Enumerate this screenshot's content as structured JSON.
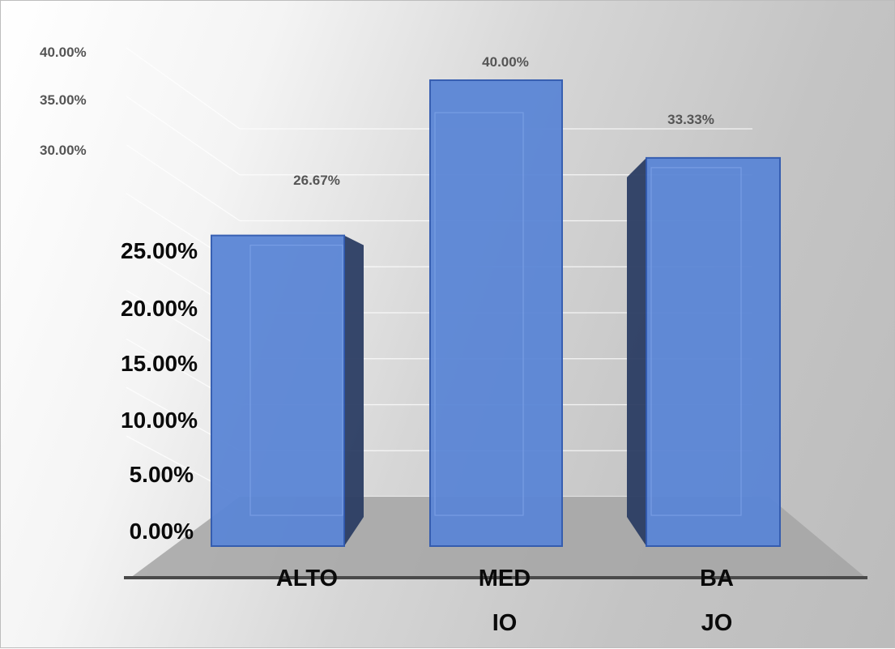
{
  "chart_data": {
    "type": "bar",
    "categories": [
      "ALTO",
      "MEDIO",
      "BAJO"
    ],
    "category_label_lines": [
      [
        "ALTO"
      ],
      [
        "MED",
        "IO"
      ],
      [
        "BA",
        "JO"
      ]
    ],
    "values": [
      26.67,
      40.0,
      33.33
    ],
    "data_labels": [
      "26.67%",
      "40.00%",
      "33.33%"
    ],
    "y_ticks": [
      "0.00%",
      "5.00%",
      "10.00%",
      "15.00%",
      "20.00%",
      "25.00%",
      "30.00%",
      "35.00%",
      "40.00%"
    ],
    "y_tick_values": [
      0,
      5,
      10,
      15,
      20,
      25,
      30,
      35,
      40
    ],
    "ylim": [
      0,
      40
    ],
    "title": "",
    "xlabel": "",
    "ylabel": "",
    "grid": true,
    "style": "3d-perspective",
    "colors": {
      "bar_front": "#5b86d6",
      "bar_side": "#2b3d63",
      "bar_edge": "#2f59b0",
      "floor": "#a5a5a5"
    }
  }
}
